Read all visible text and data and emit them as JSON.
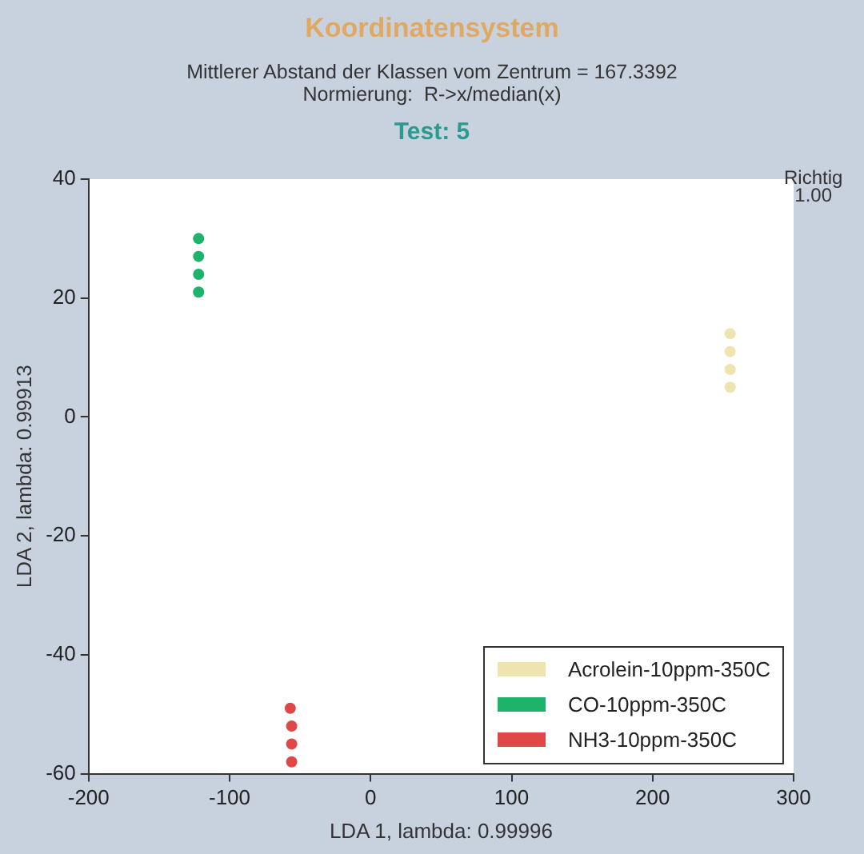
{
  "chart_data": {
    "type": "scatter",
    "title": "Koordinatensystem",
    "subtitle": "Mittlerer Abstand der Klassen vom Zentrum = 167.3392\nNormierung:  R->x/median(x)",
    "annotations": [
      "Test: 5",
      "Richtig\n1.00"
    ],
    "xlabel": "LDA 1, lambda: 0.99996",
    "ylabel": "LDA 2, lambda: 0.99913",
    "xlim": [
      -200,
      300
    ],
    "xticks": [
      -200,
      -100,
      0,
      100,
      200,
      300
    ],
    "ylim": [
      -60,
      40
    ],
    "yticks": [
      -60,
      -40,
      -20,
      0,
      20,
      40
    ],
    "grid": false,
    "legend": "bottom right",
    "marker": "circle",
    "series": [
      {
        "name": "Acrolein-10ppm-350C",
        "color": "#eee4b0",
        "x": [
          255,
          255,
          255,
          255
        ],
        "values": [
          14,
          11,
          8,
          5
        ]
      },
      {
        "name": "CO-10ppm-350C",
        "color": "#1db36a",
        "x": [
          -122,
          -122,
          -122,
          -122
        ],
        "values": [
          30,
          27,
          24,
          21
        ]
      },
      {
        "name": "NH3-10ppm-350C",
        "color": "#e04848",
        "x": [
          -57,
          -56,
          -56,
          -56
        ],
        "values": [
          -49,
          -52,
          -55,
          -58
        ]
      }
    ]
  }
}
